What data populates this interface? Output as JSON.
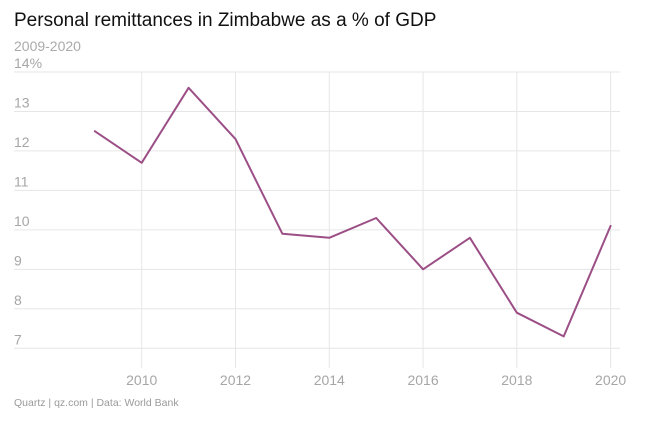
{
  "header": {
    "title": "Personal remittances in Zimbabwe as a % of GDP",
    "subtitle": "2009-2020"
  },
  "footer": {
    "source": "Quartz | qz.com | Data: World Bank"
  },
  "colors": {
    "line": "#9b4f86",
    "grid": "#e6e6e6",
    "tick_text": "#a6a6a6"
  },
  "chart_data": {
    "type": "line",
    "x": [
      2009,
      2010,
      2011,
      2012,
      2013,
      2014,
      2015,
      2016,
      2017,
      2018,
      2019,
      2020
    ],
    "series": [
      {
        "values": [
          12.5,
          11.7,
          13.6,
          12.3,
          9.9,
          9.8,
          10.3,
          9.0,
          9.8,
          7.9,
          7.3,
          10.1
        ]
      }
    ],
    "xlim": [
      2008.3,
      2020.2
    ],
    "ylim": [
      6.5,
      14
    ],
    "x_ticks": [
      2010,
      2012,
      2014,
      2016,
      2018,
      2020
    ],
    "x_tick_labels": [
      "2010",
      "2012",
      "2014",
      "2016",
      "2018",
      "2020"
    ],
    "y_ticks": [
      14,
      13,
      12,
      11,
      10,
      9,
      8,
      7
    ],
    "y_tick_labels": [
      "14%",
      "13",
      "12",
      "11",
      "10",
      "9",
      "8",
      "7"
    ],
    "grid": true
  }
}
